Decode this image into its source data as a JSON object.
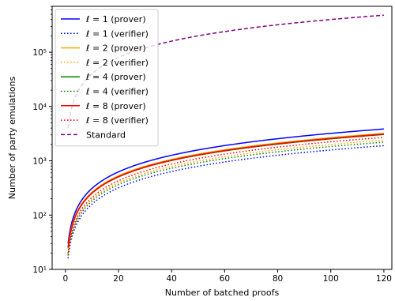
{
  "chart_data": {
    "type": "line",
    "title": "",
    "xlabel": "Number of batched proofs",
    "ylabel": "Number of party emulations",
    "xlim": [
      -5,
      123
    ],
    "ylim": [
      10,
      700000
    ],
    "yscale": "log",
    "grid": false,
    "legend_position": "top-left",
    "x_ticks": [
      0,
      20,
      40,
      60,
      80,
      100,
      120
    ],
    "x_tick_labels": [
      "0",
      "20",
      "40",
      "60",
      "80",
      "100",
      "120"
    ],
    "y_ticks": [
      10,
      100,
      1000,
      10000,
      100000
    ],
    "y_tick_labels": [
      "10¹",
      "10²",
      "10³",
      "10⁴",
      "10⁵"
    ],
    "series": [
      {
        "name": "ℓ = 1 (prover)",
        "color": "#0000ff",
        "dash": "solid",
        "anchors": [
          [
            1,
            30
          ],
          [
            120,
            3850
          ]
        ]
      },
      {
        "name": "ℓ = 1 (verifier)",
        "color": "#0000ff",
        "dash": "dotted",
        "anchors": [
          [
            1,
            16
          ],
          [
            120,
            1900
          ]
        ]
      },
      {
        "name": "ℓ = 2 (prover)",
        "color": "#ffa500",
        "dash": "solid",
        "anchors": [
          [
            1,
            26
          ],
          [
            120,
            3200
          ]
        ]
      },
      {
        "name": "ℓ = 2 (verifier)",
        "color": "#ffa500",
        "dash": "dotted",
        "anchors": [
          [
            1,
            19
          ],
          [
            120,
            2400
          ]
        ]
      },
      {
        "name": "ℓ = 4 (prover)",
        "color": "#008000",
        "dash": "solid",
        "anchors": [
          [
            1,
            25
          ],
          [
            120,
            3050
          ]
        ]
      },
      {
        "name": "ℓ = 4 (verifier)",
        "color": "#008000",
        "dash": "dotted",
        "anchors": [
          [
            1,
            18
          ],
          [
            120,
            2200
          ]
        ]
      },
      {
        "name": "ℓ = 8 (prover)",
        "color": "#ff0000",
        "dash": "solid",
        "anchors": [
          [
            1,
            25
          ],
          [
            120,
            3100
          ]
        ]
      },
      {
        "name": "ℓ = 8 (verifier)",
        "color": "#ff0000",
        "dash": "dotted",
        "anchors": [
          [
            1,
            20
          ],
          [
            120,
            2700
          ]
        ]
      },
      {
        "name": "Standard",
        "color": "#800080",
        "dash": "dashed",
        "anchors": [
          [
            1,
            4000
          ],
          [
            120,
            480000
          ]
        ]
      }
    ]
  }
}
